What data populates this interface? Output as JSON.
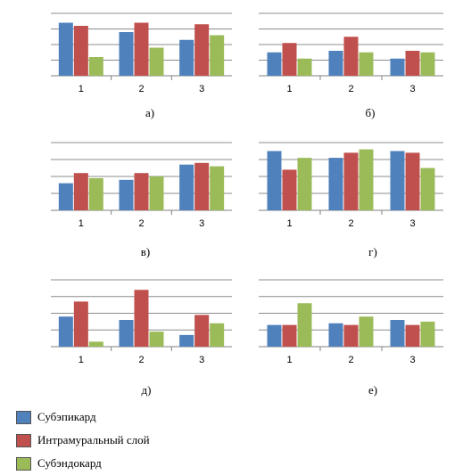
{
  "colors": {
    "Субэпикард": "#4F81BD",
    "Интрамуральный слой": "#C0504D",
    "Субэндокард": "#9BBB59"
  },
  "legend": [
    {
      "label": "Субэпикард",
      "color": "#4F81BD"
    },
    {
      "label": "Интрамуральный слой",
      "color": "#C0504D"
    },
    {
      "label": "Субэндокард",
      "color": "#9BBB59"
    }
  ],
  "chart_data": [
    {
      "type": "bar",
      "panel_label": "а)",
      "categories": [
        "1",
        "2",
        "3"
      ],
      "ylim": [
        0,
        4
      ],
      "grid": true,
      "series": [
        {
          "name": "Субэпикард",
          "values": [
            3.4,
            2.8,
            2.3
          ]
        },
        {
          "name": "Интрамуральный слой",
          "values": [
            3.2,
            3.4,
            3.3
          ]
        },
        {
          "name": "Субэндокард",
          "values": [
            1.2,
            1.8,
            2.6
          ]
        }
      ]
    },
    {
      "type": "bar",
      "panel_label": "б)",
      "categories": [
        "1",
        "2",
        "3"
      ],
      "ylim": [
        0,
        4
      ],
      "grid": true,
      "series": [
        {
          "name": "Субэпикард",
          "values": [
            1.5,
            1.6,
            1.1
          ]
        },
        {
          "name": "Интрамуральный слой",
          "values": [
            2.1,
            2.5,
            1.6
          ]
        },
        {
          "name": "Субэндокард",
          "values": [
            1.1,
            1.5,
            1.5
          ]
        }
      ]
    },
    {
      "type": "bar",
      "panel_label": "в)",
      "categories": [
        "1",
        "2",
        "3"
      ],
      "ylim": [
        0,
        4
      ],
      "grid": true,
      "series": [
        {
          "name": "Субэпикард",
          "values": [
            1.6,
            1.8,
            2.7
          ]
        },
        {
          "name": "Интрамуральный слой",
          "values": [
            2.2,
            2.2,
            2.8
          ]
        },
        {
          "name": "Субэндокард",
          "values": [
            1.9,
            2.0,
            2.6
          ]
        }
      ]
    },
    {
      "type": "bar",
      "panel_label": "г)",
      "categories": [
        "1",
        "2",
        "3"
      ],
      "ylim": [
        0,
        4
      ],
      "grid": true,
      "series": [
        {
          "name": "Субэпикард",
          "values": [
            3.5,
            3.1,
            3.5
          ]
        },
        {
          "name": "Интрамуральный слой",
          "values": [
            2.4,
            3.4,
            3.4
          ]
        },
        {
          "name": "Субэндокард",
          "values": [
            3.1,
            3.6,
            2.5
          ]
        }
      ]
    },
    {
      "type": "bar",
      "panel_label": "д)",
      "categories": [
        "1",
        "2",
        "3"
      ],
      "ylim": [
        0,
        4
      ],
      "grid": true,
      "series": [
        {
          "name": "Субэпикард",
          "values": [
            1.8,
            1.6,
            0.7
          ]
        },
        {
          "name": "Интрамуральный слой",
          "values": [
            2.7,
            3.4,
            1.9
          ]
        },
        {
          "name": "Субэндокард",
          "values": [
            0.3,
            0.9,
            1.4
          ]
        }
      ]
    },
    {
      "type": "bar",
      "panel_label": "е)",
      "categories": [
        "1",
        "2",
        "3"
      ],
      "ylim": [
        0,
        4
      ],
      "grid": true,
      "series": [
        {
          "name": "Субэпикард",
          "values": [
            1.3,
            1.4,
            1.6
          ]
        },
        {
          "name": "Интрамуральный слой",
          "values": [
            1.3,
            1.3,
            1.3
          ]
        },
        {
          "name": "Субэндокард",
          "values": [
            2.6,
            1.8,
            1.5
          ]
        }
      ]
    }
  ]
}
